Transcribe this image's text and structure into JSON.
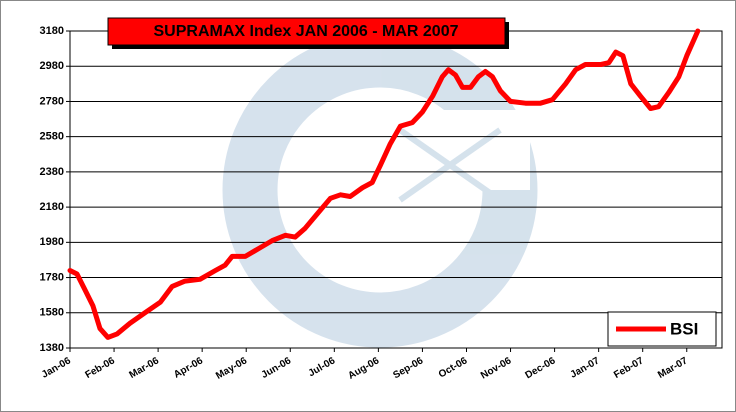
{
  "chart_data": {
    "type": "line",
    "title": "SUPRAMAX Index JAN 2006 - MAR 2007",
    "x": [
      0,
      0.16,
      0.34,
      0.52,
      0.68,
      0.86,
      1.07,
      1.36,
      1.7,
      2.05,
      2.32,
      2.61,
      2.95,
      3.3,
      3.52,
      3.68,
      3.98,
      4.32,
      4.59,
      4.89,
      5.11,
      5.34,
      5.64,
      5.91,
      6.14,
      6.36,
      6.64,
      6.86,
      7.05,
      7.27,
      7.5,
      7.77,
      8.0,
      8.23,
      8.45,
      8.59,
      8.75,
      8.91,
      9.09,
      9.27,
      9.43,
      9.59,
      9.77,
      10.0,
      10.34,
      10.68,
      10.95,
      11.25,
      11.48,
      11.7,
      12.05,
      12.23,
      12.39,
      12.55,
      12.73,
      12.95,
      13.18,
      13.36,
      13.59,
      13.82,
      14.0,
      14.18,
      14.25
    ],
    "series": [
      {
        "name": "BSI",
        "color": "#ff0000",
        "values": [
          1820,
          1800,
          1710,
          1620,
          1490,
          1440,
          1460,
          1520,
          1580,
          1640,
          1730,
          1760,
          1770,
          1820,
          1850,
          1900,
          1900,
          1950,
          1990,
          2020,
          2010,
          2060,
          2150,
          2230,
          2250,
          2240,
          2290,
          2320,
          2420,
          2540,
          2640,
          2660,
          2720,
          2810,
          2920,
          2960,
          2930,
          2860,
          2860,
          2920,
          2950,
          2920,
          2840,
          2780,
          2770,
          2770,
          2790,
          2880,
          2960,
          2990,
          2990,
          3000,
          3060,
          3040,
          2880,
          2810,
          2740,
          2750,
          2830,
          2920,
          3040,
          3140,
          3180
        ]
      }
    ],
    "xlim": [
      0,
      14.8
    ],
    "xticks": [
      {
        "value": 0,
        "label": "Jan-06"
      },
      {
        "value": 1,
        "label": "Feb-06"
      },
      {
        "value": 2,
        "label": "Mar-06"
      },
      {
        "value": 3,
        "label": "Apr-06"
      },
      {
        "value": 4,
        "label": "May-06"
      },
      {
        "value": 5,
        "label": "Jun-06"
      },
      {
        "value": 6,
        "label": "Jul-06"
      },
      {
        "value": 7,
        "label": "Aug-06"
      },
      {
        "value": 8,
        "label": "Sep-06"
      },
      {
        "value": 9,
        "label": "Oct-06"
      },
      {
        "value": 10,
        "label": "Nov-06"
      },
      {
        "value": 11,
        "label": "Dec-06"
      },
      {
        "value": 12,
        "label": "Jan-07"
      },
      {
        "value": 13,
        "label": "Feb-07"
      },
      {
        "value": 14,
        "label": "Mar-07"
      }
    ],
    "ylim": [
      1380,
      3180
    ],
    "yticks": [
      1380,
      1580,
      1780,
      1980,
      2180,
      2380,
      2580,
      2780,
      2980,
      3180
    ],
    "grid": true,
    "legend": "lower right"
  }
}
